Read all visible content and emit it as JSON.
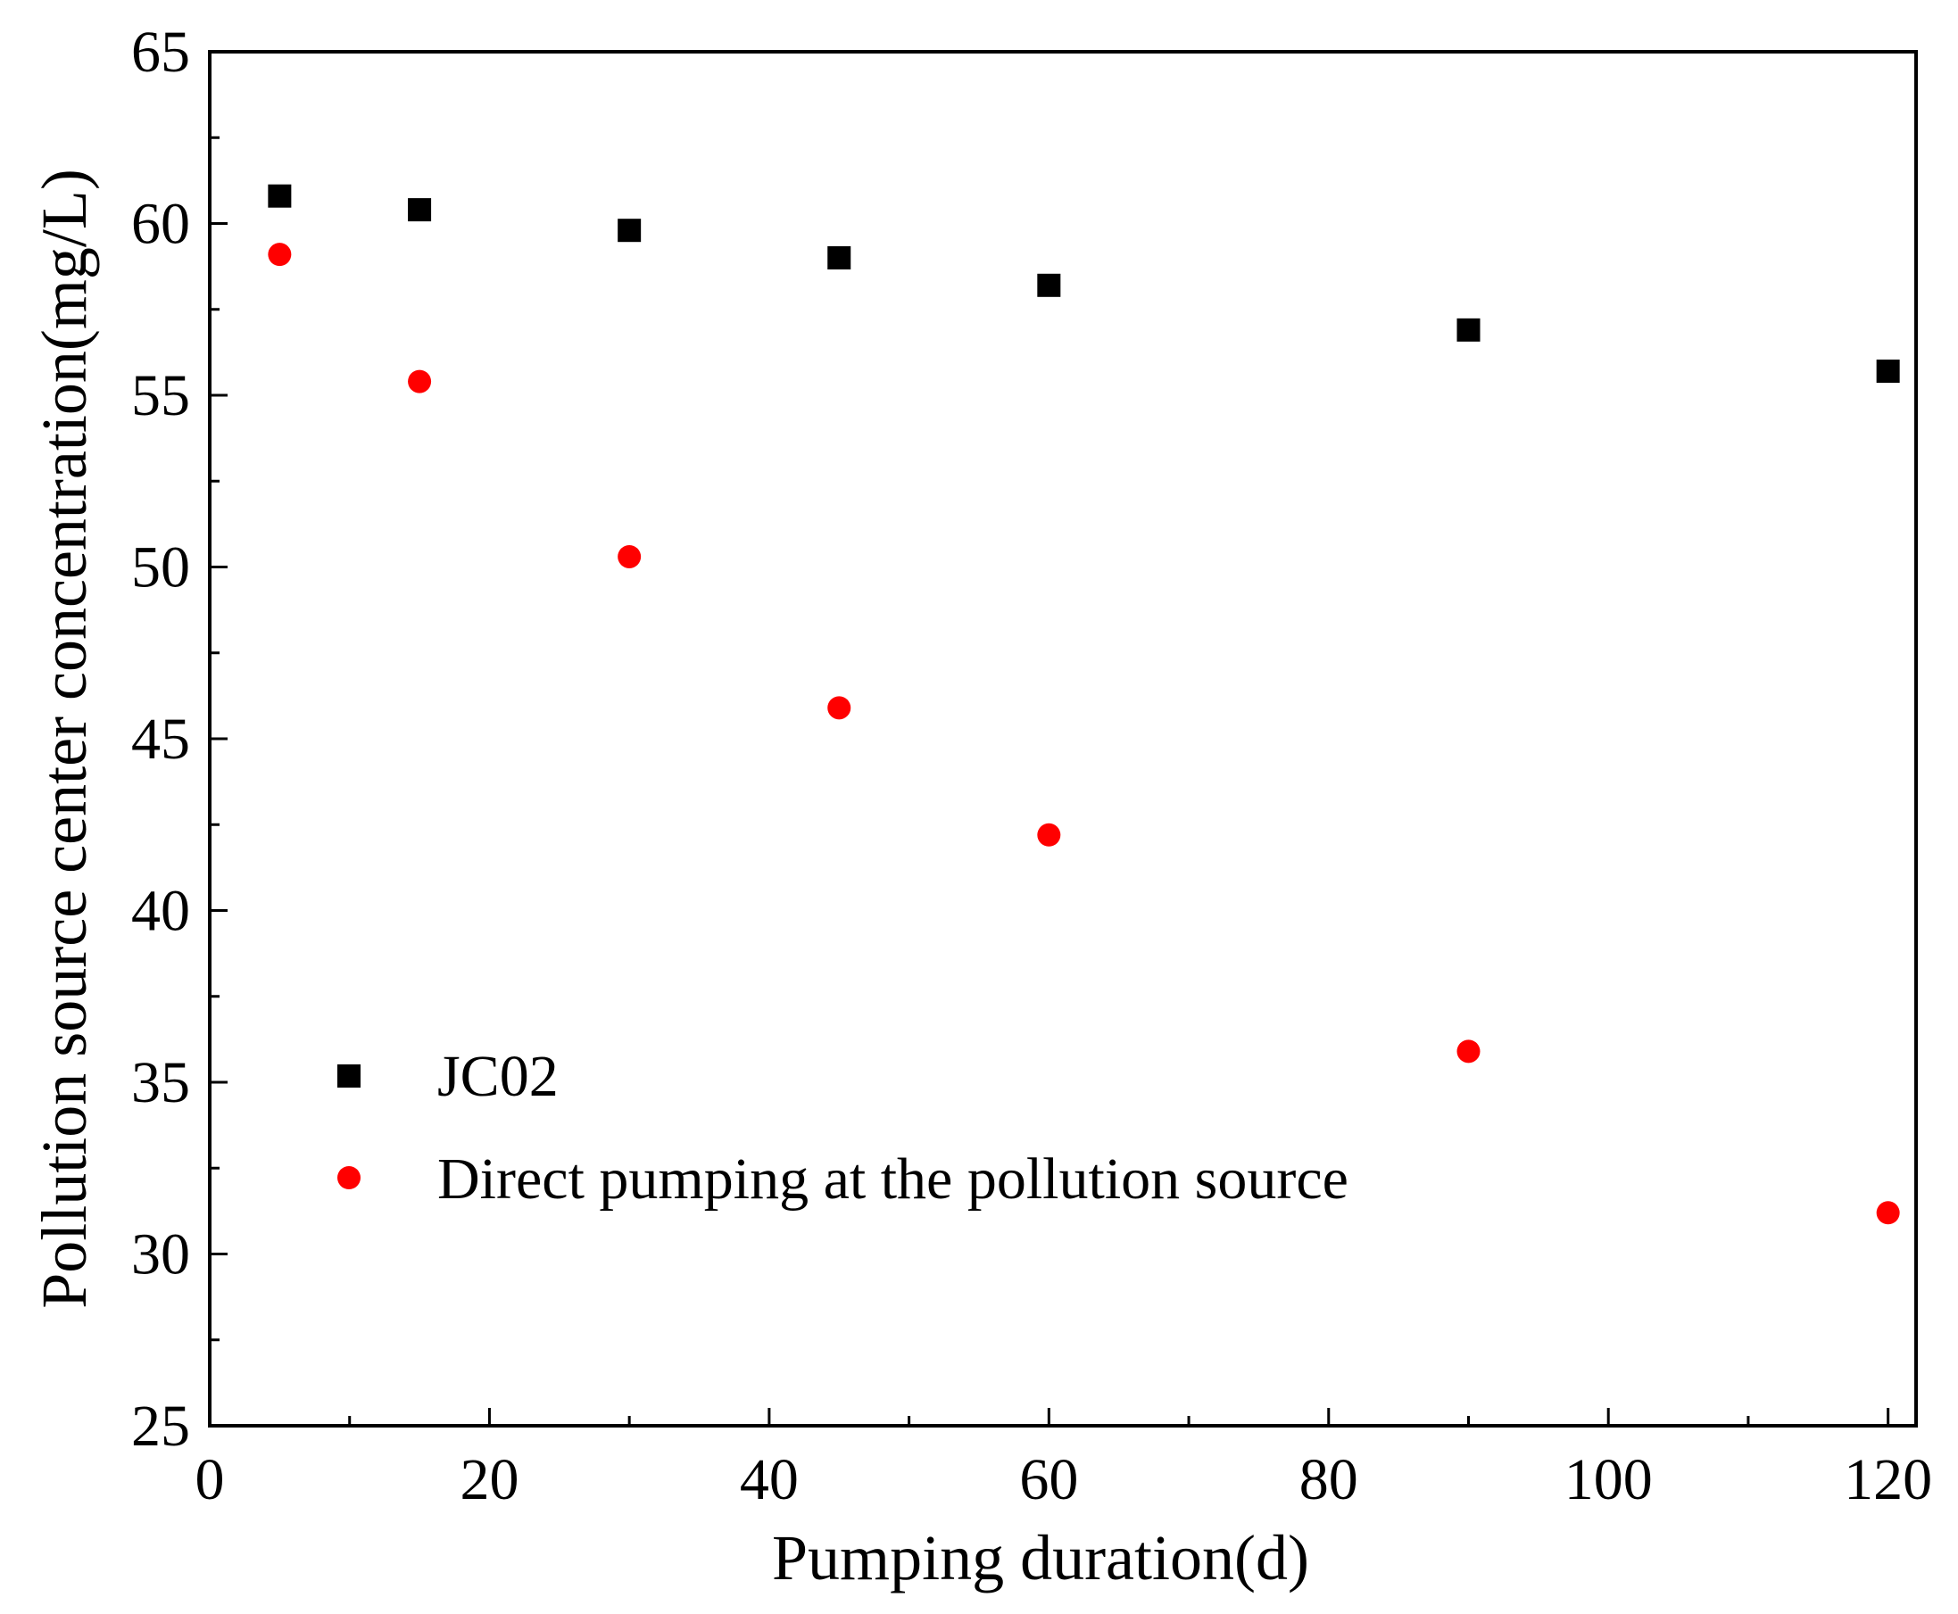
{
  "chart_data": {
    "type": "scatter",
    "title": "",
    "xlabel": "Pumping duration(d)",
    "ylabel": "Pollution source center concentration(mg/L)",
    "xlim": [
      0,
      122
    ],
    "ylim": [
      25,
      65
    ],
    "xticks": [
      0,
      20,
      40,
      60,
      80,
      100,
      120
    ],
    "yticks": [
      25,
      30,
      35,
      40,
      45,
      50,
      55,
      60,
      65
    ],
    "xtick_labels": [
      "0",
      "20",
      "40",
      "60",
      "80",
      "100",
      "120"
    ],
    "ytick_labels": [
      "25",
      "30",
      "35",
      "40",
      "45",
      "50",
      "55",
      "60",
      "65"
    ],
    "grid": false,
    "legend_position": "lower-left",
    "series": [
      {
        "name": "JC02",
        "marker": "square",
        "color": "#000000",
        "x": [
          5,
          15,
          30,
          45,
          60,
          90,
          120
        ],
        "y": [
          60.8,
          60.4,
          59.8,
          59.0,
          58.2,
          56.9,
          55.7
        ]
      },
      {
        "name": "Direct pumping at the pollution source",
        "marker": "circle",
        "color": "#ff0000",
        "x": [
          5,
          15,
          30,
          45,
          60,
          90,
          120
        ],
        "y": [
          59.1,
          55.4,
          50.3,
          45.9,
          42.2,
          35.9,
          31.2
        ]
      }
    ]
  }
}
